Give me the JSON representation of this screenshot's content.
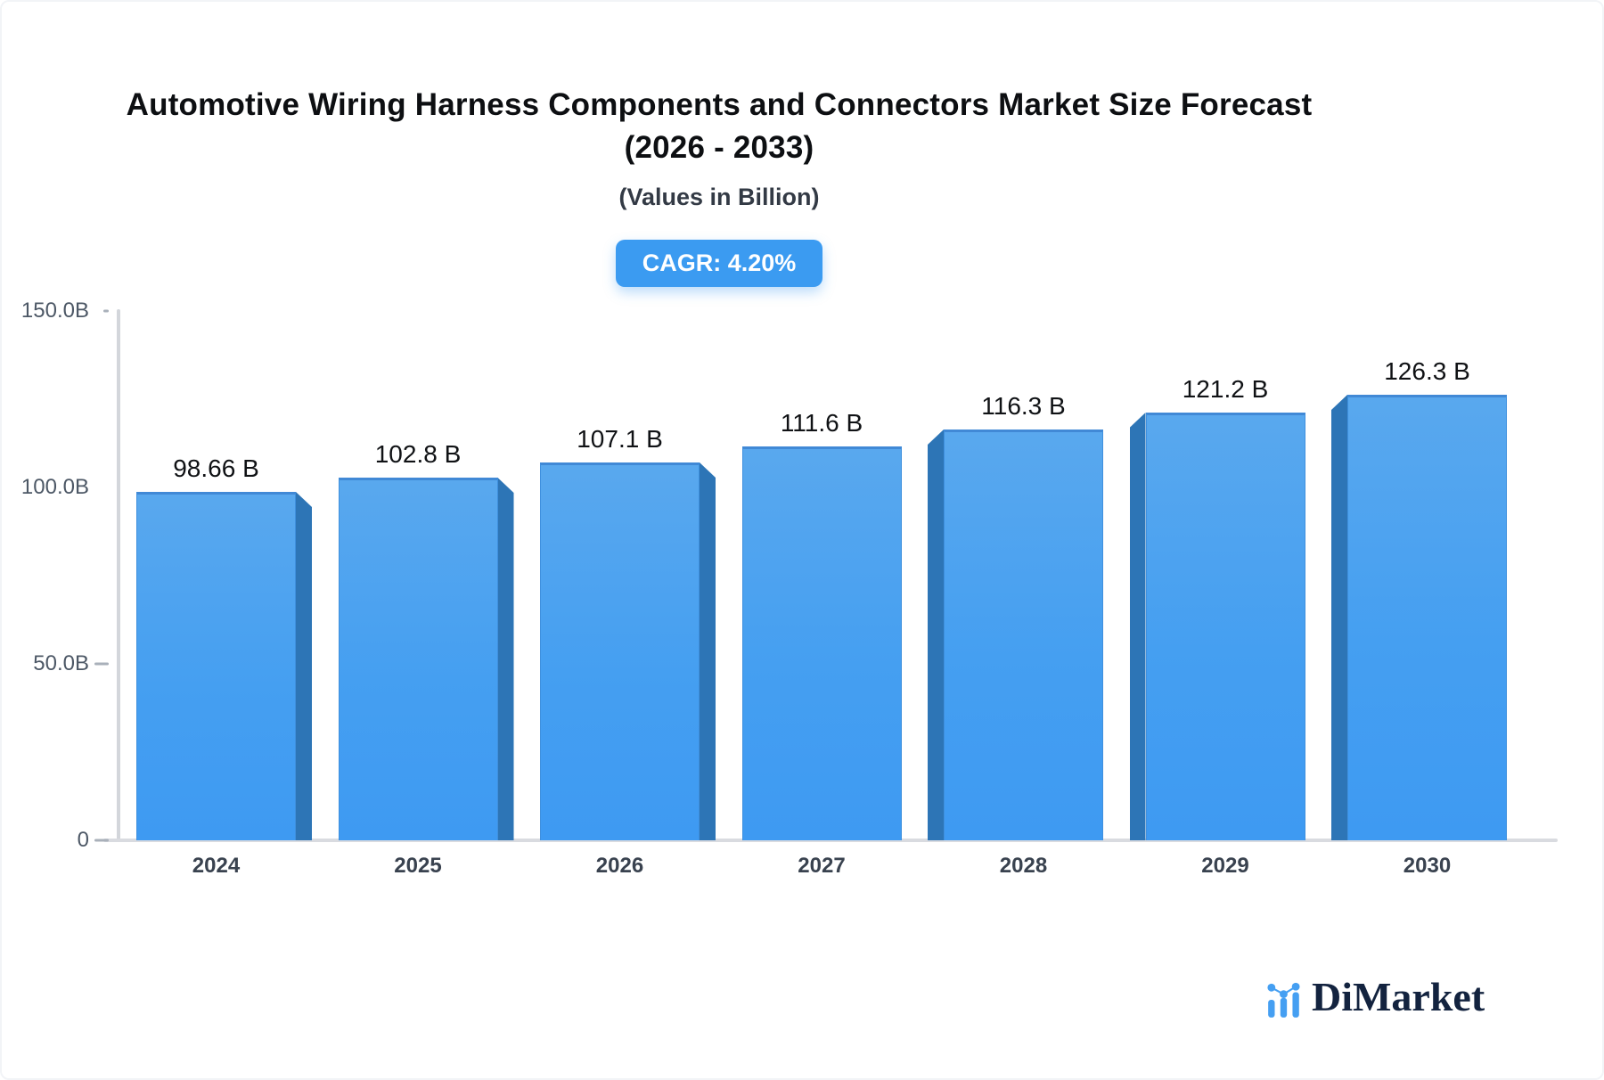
{
  "title": {
    "line1": "Automotive Wiring Harness Components and Connectors Market Size Forecast",
    "line2": "(2026 - 2033)",
    "subtitle": "(Values in Billion)",
    "cagr_label": "CAGR: 4.20%"
  },
  "chart_data": {
    "type": "bar",
    "title": "Automotive Wiring Harness Components and Connectors Market Size Forecast (2026 - 2033)",
    "subtitle": "(Values in Billion)",
    "cagr": "4.20%",
    "categories": [
      "2024",
      "2025",
      "2026",
      "2027",
      "2028",
      "2029",
      "2030"
    ],
    "values": [
      98.66,
      102.8,
      107.1,
      111.6,
      116.3,
      121.2,
      126.3
    ],
    "value_labels": [
      "98.66 B",
      "102.8 B",
      "107.1 B",
      "111.6 B",
      "116.3 B",
      "121.2 B",
      "126.3 B"
    ],
    "xlabel": "",
    "ylabel": "",
    "ylim": [
      0,
      150
    ],
    "y_ticks": [
      {
        "label": "150.0B",
        "value": 150
      },
      {
        "label": "100.0B",
        "value": 100
      },
      {
        "label": "50.0B",
        "value": 50
      },
      {
        "label": "0",
        "value": 0
      }
    ],
    "grid": false,
    "legend": false,
    "colors": {
      "bar_top": "#59a8ee",
      "bar_bottom": "#3e9af2",
      "bar_side": "#2d75b6",
      "bar_edge": "#4189d6",
      "axis_line": "#d3d6db",
      "badge_bg": "#3b9bf1",
      "badge_text": "#ffffff"
    }
  },
  "logo": {
    "text": "DiMarket"
  }
}
